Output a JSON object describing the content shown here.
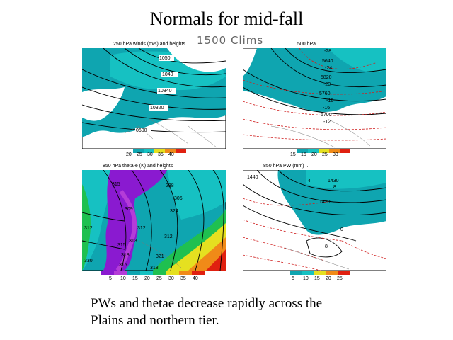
{
  "slide": {
    "title": "Normals for mid-fall",
    "caption_line1": "PWs and thetae decrease rapidly across the",
    "caption_line2": "Plains and northern tier."
  },
  "handwritten_note": "1500 Clims",
  "panels": [
    {
      "id": "top-left",
      "header": "250 hPa winds (m/s) and heights",
      "contour_labels": [
        "1050",
        "1040",
        "10340",
        "10320",
        "0600"
      ],
      "colorbar": [
        "20",
        "25",
        "30",
        "35",
        "40"
      ],
      "colors": [
        "#0fa5b0",
        "#16c1c2",
        "#e5e020",
        "#f08a18",
        "#e02010"
      ]
    },
    {
      "id": "top-right",
      "header": "500 hPa ...",
      "contour_labels": [
        "-28",
        "5640",
        "-24",
        "5820",
        "-20",
        "5760",
        "-16",
        "-16",
        "5700",
        "-12"
      ],
      "colorbar": [
        "15",
        "15",
        "20",
        "25",
        "33"
      ],
      "colors": [
        "#0fa5b0",
        "#16c1c2",
        "#e5e020",
        "#f08a18",
        "#e02010"
      ]
    },
    {
      "id": "bottom-left",
      "header": "850 hPa theta-e (K) and heights",
      "contour_labels": [
        "315",
        "288",
        "306",
        "309",
        "324",
        "312",
        "312",
        "312",
        "313",
        "315",
        "318",
        "321",
        "330",
        "315",
        "318"
      ],
      "colorbar": [
        "5",
        "10",
        "15",
        "20",
        "25",
        "30",
        "35",
        "40"
      ],
      "colors": [
        "#8a1ad0",
        "#b43cd8",
        "#0fa5b0",
        "#16c1c2",
        "#1fc050",
        "#e5e020",
        "#f08a18",
        "#e02010"
      ]
    },
    {
      "id": "bottom-right",
      "header": "850 hPa PW (mm) ...",
      "contour_labels": [
        "1440",
        "4",
        "1430",
        "8",
        "1420",
        "0",
        "8"
      ],
      "colorbar": [
        "5",
        "10",
        "15",
        "20",
        "25"
      ],
      "colors": [
        "#0fa5b0",
        "#16c1c2",
        "#e5e020",
        "#f08a18",
        "#e02010"
      ]
    }
  ]
}
